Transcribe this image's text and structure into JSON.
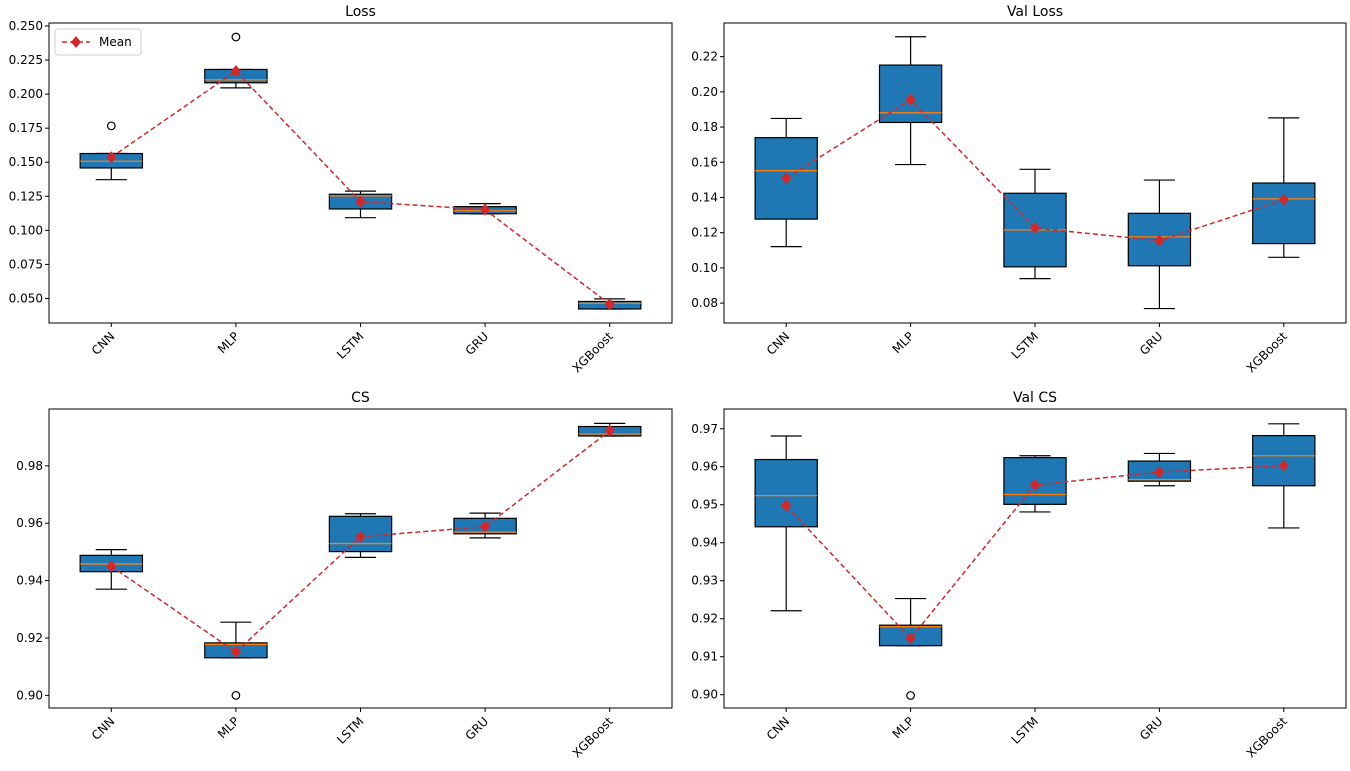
{
  "colors": {
    "box": "#1f77b4",
    "median": "#ff7f0e",
    "mean": "#d62728",
    "edge": "#000000"
  },
  "legend": {
    "label": "Mean",
    "placement": "upper-left",
    "marker": "diamond-icon"
  },
  "chart_data": [
    {
      "type": "box",
      "title": "Loss",
      "categories": [
        "CNN",
        "MLP",
        "LSTM",
        "GRU",
        "XGBoost"
      ],
      "ylim": [
        0.032,
        0.2522
      ],
      "yticks": [
        "0.050",
        "0.075",
        "0.100",
        "0.125",
        "0.150",
        "0.175",
        "0.200",
        "0.225",
        "0.250"
      ],
      "show_legend": true,
      "boxes": [
        {
          "whislo": 0.1372,
          "q1": 0.1458,
          "med": 0.1507,
          "q3": 0.1564,
          "whishi": 0.1564,
          "mean": 0.1537,
          "fliers": [
            0.1767
          ]
        },
        {
          "whislo": 0.2046,
          "q1": 0.2083,
          "med": 0.2105,
          "q3": 0.2181,
          "whishi": 0.2181,
          "mean": 0.2169,
          "fliers": [
            0.2419
          ]
        },
        {
          "whislo": 0.1093,
          "q1": 0.1157,
          "med": 0.1253,
          "q3": 0.1265,
          "whishi": 0.1288,
          "mean": 0.1211,
          "fliers": []
        },
        {
          "whislo": 0.1122,
          "q1": 0.1122,
          "med": 0.1144,
          "q3": 0.1174,
          "whishi": 0.1196,
          "mean": 0.1152,
          "fliers": []
        },
        {
          "whislo": 0.0423,
          "q1": 0.0423,
          "med": 0.0465,
          "q3": 0.0478,
          "whishi": 0.0497,
          "mean": 0.0458,
          "fliers": []
        }
      ]
    },
    {
      "type": "box",
      "title": "Val Loss",
      "categories": [
        "CNN",
        "MLP",
        "LSTM",
        "GRU",
        "XGBoost"
      ],
      "ylim": [
        0.0687,
        0.2391
      ],
      "yticks": [
        "0.08",
        "0.10",
        "0.12",
        "0.14",
        "0.16",
        "0.18",
        "0.20",
        "0.22"
      ],
      "show_legend": false,
      "boxes": [
        {
          "whislo": 0.1121,
          "q1": 0.1277,
          "med": 0.1552,
          "q3": 0.174,
          "whishi": 0.1849,
          "mean": 0.1509,
          "fliers": []
        },
        {
          "whislo": 0.1587,
          "q1": 0.1826,
          "med": 0.1881,
          "q3": 0.2152,
          "whishi": 0.2313,
          "mean": 0.1955,
          "fliers": []
        },
        {
          "whislo": 0.0939,
          "q1": 0.1006,
          "med": 0.1216,
          "q3": 0.1424,
          "whishi": 0.156,
          "mean": 0.1226,
          "fliers": []
        },
        {
          "whislo": 0.0769,
          "q1": 0.1012,
          "med": 0.1176,
          "q3": 0.131,
          "whishi": 0.1499,
          "mean": 0.1155,
          "fliers": []
        },
        {
          "whislo": 0.106,
          "q1": 0.1138,
          "med": 0.1392,
          "q3": 0.1482,
          "whishi": 0.1852,
          "mean": 0.1387,
          "fliers": []
        }
      ]
    },
    {
      "type": "box",
      "title": "CS",
      "categories": [
        "CNN",
        "MLP",
        "LSTM",
        "GRU",
        "XGBoost"
      ],
      "ylim": [
        0.8956,
        0.9998
      ],
      "yticks": [
        "0.90",
        "0.92",
        "0.94",
        "0.96",
        "0.98"
      ],
      "show_legend": false,
      "boxes": [
        {
          "whislo": 0.937,
          "q1": 0.9431,
          "med": 0.9458,
          "q3": 0.9488,
          "whishi": 0.9508,
          "mean": 0.945,
          "fliers": []
        },
        {
          "whislo": 0.9131,
          "q1": 0.9131,
          "med": 0.9178,
          "q3": 0.9183,
          "whishi": 0.9255,
          "mean": 0.9151,
          "fliers": [
            0.9
          ]
        },
        {
          "whislo": 0.9481,
          "q1": 0.9501,
          "med": 0.9529,
          "q3": 0.9624,
          "whishi": 0.9633,
          "mean": 0.9553,
          "fliers": []
        },
        {
          "whislo": 0.9549,
          "q1": 0.9563,
          "med": 0.9569,
          "q3": 0.9617,
          "whishi": 0.9635,
          "mean": 0.9588,
          "fliers": []
        },
        {
          "whislo": 0.9904,
          "q1": 0.9904,
          "med": 0.9911,
          "q3": 0.9937,
          "whishi": 0.9948,
          "mean": 0.9922,
          "fliers": []
        }
      ]
    },
    {
      "type": "box",
      "title": "Val CS",
      "categories": [
        "CNN",
        "MLP",
        "LSTM",
        "GRU",
        "XGBoost"
      ],
      "ylim": [
        0.8965,
        0.9752
      ],
      "yticks": [
        "0.90",
        "0.91",
        "0.92",
        "0.93",
        "0.94",
        "0.95",
        "0.96",
        "0.97"
      ],
      "show_legend": false,
      "boxes": [
        {
          "whislo": 0.9221,
          "q1": 0.9442,
          "med": 0.9524,
          "q3": 0.9619,
          "whishi": 0.9681,
          "mean": 0.9498,
          "fliers": []
        },
        {
          "whislo": 0.9129,
          "q1": 0.9129,
          "med": 0.9179,
          "q3": 0.9183,
          "whishi": 0.9253,
          "mean": 0.9148,
          "fliers": [
            0.8998
          ]
        },
        {
          "whislo": 0.9481,
          "q1": 0.9501,
          "med": 0.9527,
          "q3": 0.9624,
          "whishi": 0.9629,
          "mean": 0.9552,
          "fliers": []
        },
        {
          "whislo": 0.955,
          "q1": 0.9562,
          "med": 0.9566,
          "q3": 0.9615,
          "whishi": 0.9635,
          "mean": 0.9586,
          "fliers": []
        },
        {
          "whislo": 0.9439,
          "q1": 0.955,
          "med": 0.9629,
          "q3": 0.9682,
          "whishi": 0.9713,
          "mean": 0.9603,
          "fliers": []
        }
      ]
    }
  ]
}
